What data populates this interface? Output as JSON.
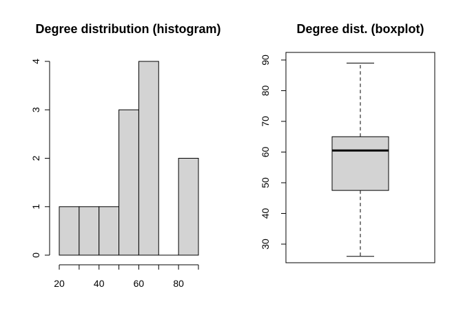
{
  "chart_data": [
    {
      "type": "bar",
      "title": "Degree distribution (histogram)",
      "xlabel": "",
      "ylabel": "",
      "bins": [
        {
          "start": 20,
          "end": 30,
          "count": 1
        },
        {
          "start": 30,
          "end": 40,
          "count": 1
        },
        {
          "start": 40,
          "end": 50,
          "count": 1
        },
        {
          "start": 50,
          "end": 60,
          "count": 3
        },
        {
          "start": 60,
          "end": 70,
          "count": 4
        },
        {
          "start": 70,
          "end": 80,
          "count": 0
        },
        {
          "start": 80,
          "end": 90,
          "count": 2
        }
      ],
      "xlim": [
        20,
        90
      ],
      "ylim": [
        0,
        4
      ],
      "x_ticks": [
        20,
        40,
        60,
        80
      ],
      "x_tick_labels": [
        "20",
        "40",
        "60",
        "80"
      ],
      "y_ticks": [
        0,
        1,
        2,
        3,
        4
      ],
      "y_tick_labels": [
        "0",
        "1",
        "2",
        "3",
        "4"
      ],
      "bar_fill": "#d3d3d3",
      "bar_stroke": "#000000",
      "grid": false
    },
    {
      "type": "boxplot",
      "title": "Degree dist. (boxplot)",
      "xlabel": "",
      "ylabel": "",
      "stats": {
        "min": 26,
        "q1": 47.5,
        "median": 60.5,
        "q3": 65,
        "max": 89
      },
      "ylim": [
        26,
        90
      ],
      "y_ticks": [
        30,
        40,
        50,
        60,
        70,
        80,
        90
      ],
      "y_tick_labels": [
        "30",
        "40",
        "50",
        "60",
        "70",
        "80",
        "90"
      ],
      "box_fill": "#d3d3d3",
      "grid": false
    }
  ]
}
